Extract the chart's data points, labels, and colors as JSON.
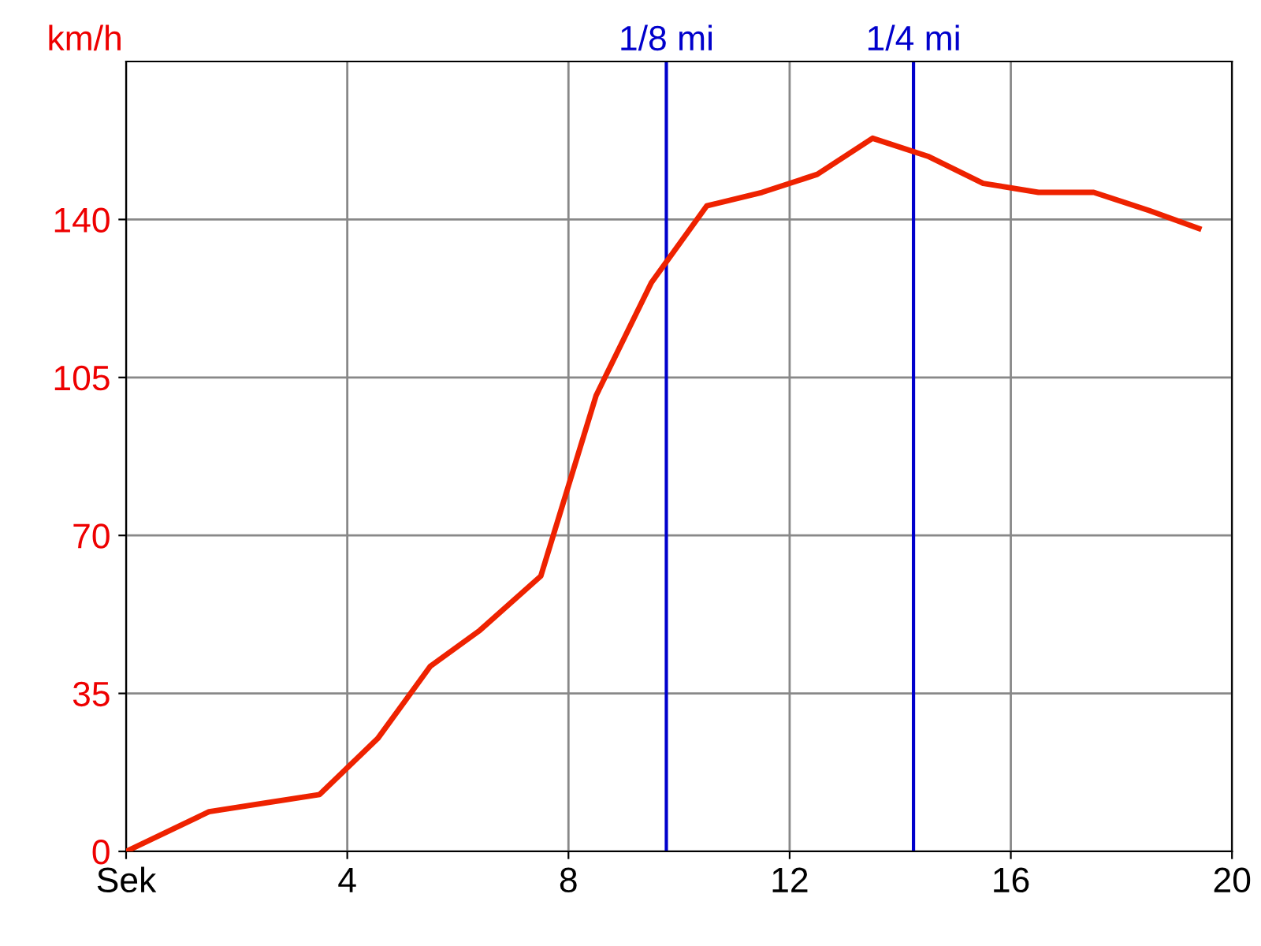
{
  "chart_data": {
    "type": "line",
    "ylabel": "km/h",
    "x": [
      0,
      1.5,
      3.5,
      4.55,
      5.5,
      6.4,
      7.5,
      8.5,
      9.5,
      10.5,
      11.5,
      12.5,
      13.5,
      14.5,
      15.5,
      16.5,
      17.5,
      18.5,
      19.4
    ],
    "series": [
      {
        "color": "#ee2200",
        "values": [
          0,
          8.8,
          12.6,
          25,
          41,
          49,
          61,
          101,
          126,
          143,
          146,
          150,
          158,
          154,
          148,
          146,
          146,
          142,
          138
        ]
      }
    ],
    "xlim": [
      0,
      20
    ],
    "xticks": [
      {
        "value": 0,
        "label": "Sek"
      },
      4,
      8,
      12,
      16,
      20
    ],
    "ylim": [
      0,
      175
    ],
    "yticks": [
      0,
      35,
      70,
      105,
      140
    ],
    "ref_lines": [
      {
        "axis": "x",
        "value": 9.77,
        "label": "1/8 mi",
        "color": "#0000cc"
      },
      {
        "axis": "x",
        "value": 14.24,
        "label": "1/4 mi",
        "color": "#0000cc"
      }
    ],
    "grid": true,
    "marker": "none",
    "line_style": "solid"
  }
}
